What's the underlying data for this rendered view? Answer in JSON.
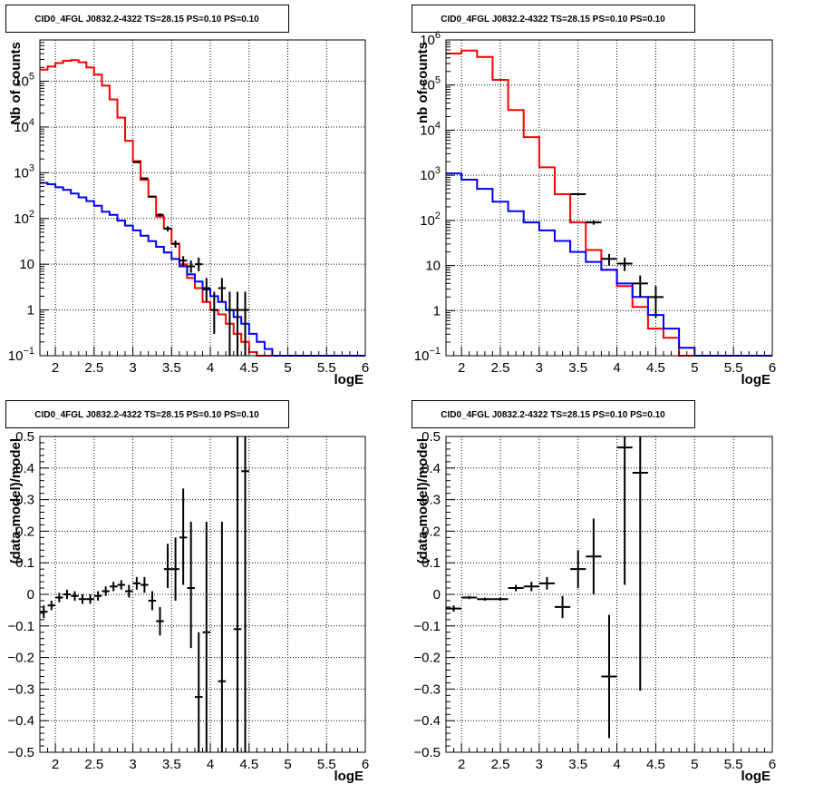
{
  "chart_data": [
    {
      "type": "line",
      "title": "CID0_4FGL J0832.2-4322 TS=28.15 PS=0.10 PS=0.10",
      "xlabel": "logE",
      "ylabel": "Nb of counts",
      "yscale": "log",
      "xlim": [
        1.8,
        6
      ],
      "ylim": [
        0.1,
        800000
      ],
      "grid": true,
      "x_ticks": [
        "2",
        "2.5",
        "3",
        "3.5",
        "4",
        "4.5",
        "5",
        "5.5",
        "6"
      ],
      "y_ticks": [
        {
          "v": 0.1,
          "label": "10",
          "exp": "−1"
        },
        {
          "v": 1,
          "label": "1",
          "exp": ""
        },
        {
          "v": 10,
          "label": "10",
          "exp": ""
        },
        {
          "v": 100,
          "label": "10",
          "exp": "2"
        },
        {
          "v": 1000,
          "label": "10",
          "exp": "3"
        },
        {
          "v": 10000,
          "label": "10",
          "exp": "4"
        },
        {
          "v": 100000,
          "label": "10",
          "exp": "5"
        }
      ],
      "bin_edges": [
        1.8,
        1.9,
        2.0,
        2.1,
        2.2,
        2.3,
        2.4,
        2.5,
        2.6,
        2.7,
        2.8,
        2.9,
        3.0,
        3.1,
        3.2,
        3.3,
        3.4,
        3.5,
        3.6,
        3.7,
        3.8,
        3.9,
        4.0,
        4.1,
        4.2,
        4.3,
        4.4,
        4.5,
        4.6,
        4.7,
        4.8,
        4.9,
        5.0,
        5.1,
        5.2,
        5.3,
        5.4,
        5.5,
        5.6,
        5.7,
        5.8,
        5.9,
        6.0
      ],
      "series": [
        {
          "color": "#ff0000",
          "values": [
            180000,
            210000,
            250000,
            280000,
            290000,
            260000,
            200000,
            140000,
            80000,
            40000,
            16000,
            5000,
            1800,
            700,
            300,
            110,
            60,
            28,
            10,
            5,
            3,
            1.5,
            1,
            0.8,
            0.5,
            0.3,
            0.2,
            0.12,
            0.1,
            0.1,
            0.1,
            0.1,
            0.1,
            0.1,
            0.1,
            0.1,
            0.1,
            0.1,
            0.1,
            0.1,
            0.1,
            0.1
          ]
        },
        {
          "color": "#0000ff",
          "values": [
            600,
            560,
            480,
            420,
            350,
            290,
            240,
            190,
            140,
            120,
            90,
            70,
            55,
            42,
            32,
            24,
            18,
            13,
            9,
            6,
            4.2,
            2.8,
            2,
            1.5,
            1,
            0.7,
            0.5,
            0.3,
            0.2,
            0.14,
            0.1,
            0.1,
            0.1,
            0.1,
            0.1,
            0.1,
            0.1,
            0.1,
            0.1,
            0.1,
            0.1,
            0.1
          ]
        }
      ],
      "data_points": [
        {
          "x": 3.05,
          "y": 1700,
          "xerr": 0.05,
          "ylo": 1650,
          "yhi": 1750
        },
        {
          "x": 3.15,
          "y": 750,
          "xerr": 0.05,
          "ylo": 720,
          "yhi": 780
        },
        {
          "x": 3.25,
          "y": 300,
          "xerr": 0.05,
          "ylo": 285,
          "yhi": 315
        },
        {
          "x": 3.35,
          "y": 120,
          "xerr": 0.05,
          "ylo": 110,
          "yhi": 130
        },
        {
          "x": 3.45,
          "y": 60,
          "xerr": 0.05,
          "ylo": 52,
          "yhi": 68
        },
        {
          "x": 3.55,
          "y": 28,
          "xerr": 0.05,
          "ylo": 23,
          "yhi": 33
        },
        {
          "x": 3.65,
          "y": 12,
          "xerr": 0.05,
          "ylo": 9,
          "yhi": 15
        },
        {
          "x": 3.75,
          "y": 9,
          "xerr": 0.05,
          "ylo": 6.5,
          "yhi": 12
        },
        {
          "x": 3.85,
          "y": 10,
          "xerr": 0.05,
          "ylo": 7,
          "yhi": 14
        },
        {
          "x": 3.95,
          "y": 3,
          "xerr": 0.05,
          "ylo": 1.5,
          "yhi": 5
        },
        {
          "x": 4.05,
          "y": 1,
          "xerr": 0.05,
          "ylo": 0.3,
          "yhi": 2.5
        },
        {
          "x": 4.15,
          "y": 3,
          "xerr": 0.05,
          "ylo": 1.5,
          "yhi": 5
        },
        {
          "x": 4.25,
          "y": 1,
          "xerr": 0.05,
          "ylo": 0.1,
          "yhi": 2.5
        },
        {
          "x": 4.35,
          "y": 1,
          "xerr": 0.05,
          "ylo": 0.1,
          "yhi": 2.5
        },
        {
          "x": 4.45,
          "y": 1,
          "xerr": 0.05,
          "ylo": 0.1,
          "yhi": 2.5
        }
      ]
    },
    {
      "type": "line",
      "title": "CID0_4FGL J0832.2-4322 TS=28.15 PS=0.10 PS=0.10",
      "xlabel": "logE",
      "ylabel": "nb of counts",
      "yscale": "log",
      "xlim": [
        1.8,
        6
      ],
      "ylim": [
        0.1,
        1000000
      ],
      "grid": true,
      "x_ticks": [
        "2",
        "2.5",
        "3",
        "3.5",
        "4",
        "4.5",
        "5",
        "5.5",
        "6"
      ],
      "y_ticks": [
        {
          "v": 0.1,
          "label": "10",
          "exp": "−1"
        },
        {
          "v": 1,
          "label": "1",
          "exp": ""
        },
        {
          "v": 10,
          "label": "10",
          "exp": ""
        },
        {
          "v": 100,
          "label": "10",
          "exp": "2"
        },
        {
          "v": 1000,
          "label": "10",
          "exp": "3"
        },
        {
          "v": 10000,
          "label": "10",
          "exp": "4"
        },
        {
          "v": 100000,
          "label": "10",
          "exp": "5"
        },
        {
          "v": 1000000,
          "label": "10",
          "exp": "6"
        }
      ],
      "bin_edges": [
        1.8,
        2.0,
        2.2,
        2.4,
        2.6,
        2.8,
        3.0,
        3.2,
        3.4,
        3.6,
        3.8,
        4.0,
        4.2,
        4.4,
        4.6,
        4.8,
        5.0,
        5.2,
        5.4,
        5.6,
        5.8,
        6.0
      ],
      "series": [
        {
          "color": "#ff0000",
          "values": [
            500000,
            580000,
            420000,
            130000,
            28000,
            7000,
            1500,
            380,
            90,
            22,
            8,
            3.5,
            1.2,
            0.4,
            0.25,
            0.1,
            0.1,
            0.1,
            0.1,
            0.1,
            0.1
          ]
        },
        {
          "color": "#0000ff",
          "values": [
            1100,
            800,
            500,
            260,
            160,
            90,
            60,
            35,
            20,
            12,
            8,
            4,
            2,
            0.8,
            0.4,
            0.15,
            0.1,
            0.1,
            0.1,
            0.1,
            0.1
          ]
        }
      ],
      "data_points": [
        {
          "x": 3.5,
          "y": 380,
          "xerr": 0.1,
          "ylo": 360,
          "yhi": 400
        },
        {
          "x": 3.7,
          "y": 90,
          "xerr": 0.1,
          "ylo": 80,
          "yhi": 100
        },
        {
          "x": 3.9,
          "y": 14,
          "xerr": 0.1,
          "ylo": 10,
          "yhi": 18
        },
        {
          "x": 4.1,
          "y": 11,
          "xerr": 0.1,
          "ylo": 7.5,
          "yhi": 15
        },
        {
          "x": 4.3,
          "y": 4,
          "xerr": 0.1,
          "ylo": 2,
          "yhi": 6
        },
        {
          "x": 4.5,
          "y": 2,
          "xerr": 0.1,
          "ylo": 0.7,
          "yhi": 3.5
        }
      ]
    },
    {
      "type": "scatter",
      "title": "CID0_4FGL J0832.2-4322 TS=28.15 PS=0.10 PS=0.10",
      "xlabel": "logE",
      "ylabel": "(data-model)/model",
      "yscale": "linear",
      "xlim": [
        1.8,
        6
      ],
      "ylim": [
        -0.5,
        0.5
      ],
      "grid": true,
      "x_ticks": [
        "2",
        "2.5",
        "3",
        "3.5",
        "4",
        "4.5",
        "5",
        "5.5",
        "6"
      ],
      "y_ticks": [
        {
          "v": 0.5,
          "label": "0.5"
        },
        {
          "v": 0.4,
          "label": "0.4"
        },
        {
          "v": 0.3,
          "label": "0.3"
        },
        {
          "v": 0.2,
          "label": "0.2"
        },
        {
          "v": 0.1,
          "label": "0.1"
        },
        {
          "v": 0,
          "label": "0"
        },
        {
          "v": -0.1,
          "label": "−0.1"
        },
        {
          "v": -0.2,
          "label": "−0.2"
        },
        {
          "v": -0.3,
          "label": "−0.3"
        },
        {
          "v": -0.4,
          "label": "−0.4"
        },
        {
          "v": -0.5,
          "label": "−0.5"
        }
      ],
      "data_points": [
        {
          "x": 1.85,
          "y": -0.055,
          "xerr": 0.05,
          "ylo": -0.075,
          "yhi": -0.035
        },
        {
          "x": 1.95,
          "y": -0.035,
          "xerr": 0.05,
          "ylo": -0.05,
          "yhi": -0.02
        },
        {
          "x": 2.05,
          "y": -0.01,
          "xerr": 0.05,
          "ylo": -0.025,
          "yhi": 0.005
        },
        {
          "x": 2.15,
          "y": 0.0,
          "xerr": 0.05,
          "ylo": -0.015,
          "yhi": 0.015
        },
        {
          "x": 2.25,
          "y": -0.005,
          "xerr": 0.05,
          "ylo": -0.02,
          "yhi": 0.01
        },
        {
          "x": 2.35,
          "y": -0.015,
          "xerr": 0.05,
          "ylo": -0.03,
          "yhi": 0.0
        },
        {
          "x": 2.45,
          "y": -0.015,
          "xerr": 0.05,
          "ylo": -0.03,
          "yhi": 0.0
        },
        {
          "x": 2.55,
          "y": -0.005,
          "xerr": 0.05,
          "ylo": -0.02,
          "yhi": 0.01
        },
        {
          "x": 2.65,
          "y": 0.01,
          "xerr": 0.05,
          "ylo": -0.005,
          "yhi": 0.025
        },
        {
          "x": 2.75,
          "y": 0.025,
          "xerr": 0.05,
          "ylo": 0.01,
          "yhi": 0.04
        },
        {
          "x": 2.85,
          "y": 0.03,
          "xerr": 0.05,
          "ylo": 0.015,
          "yhi": 0.045
        },
        {
          "x": 2.95,
          "y": 0.01,
          "xerr": 0.05,
          "ylo": -0.01,
          "yhi": 0.03
        },
        {
          "x": 3.05,
          "y": 0.035,
          "xerr": 0.05,
          "ylo": 0.015,
          "yhi": 0.055
        },
        {
          "x": 3.15,
          "y": 0.03,
          "xerr": 0.05,
          "ylo": 0.005,
          "yhi": 0.055
        },
        {
          "x": 3.25,
          "y": -0.02,
          "xerr": 0.05,
          "ylo": -0.05,
          "yhi": 0.01
        },
        {
          "x": 3.35,
          "y": -0.085,
          "xerr": 0.05,
          "ylo": -0.13,
          "yhi": -0.04
        },
        {
          "x": 3.45,
          "y": 0.08,
          "xerr": 0.05,
          "ylo": 0.02,
          "yhi": 0.16
        },
        {
          "x": 3.55,
          "y": 0.08,
          "xerr": 0.05,
          "ylo": -0.02,
          "yhi": 0.18
        },
        {
          "x": 3.65,
          "y": 0.18,
          "xerr": 0.05,
          "ylo": 0.03,
          "yhi": 0.335
        },
        {
          "x": 3.75,
          "y": 0.02,
          "xerr": 0.05,
          "ylo": -0.17,
          "yhi": 0.23
        },
        {
          "x": 3.85,
          "y": -0.325,
          "xerr": 0.05,
          "ylo": -0.5,
          "yhi": -0.12
        },
        {
          "x": 3.95,
          "y": -0.12,
          "xerr": 0.05,
          "ylo": -0.5,
          "yhi": 0.23
        },
        {
          "x": 4.15,
          "y": -0.275,
          "xerr": 0.05,
          "ylo": -0.5,
          "yhi": 0.23
        },
        {
          "x": 4.35,
          "y": -0.11,
          "xerr": 0.05,
          "ylo": -0.5,
          "yhi": 0.5
        },
        {
          "x": 4.45,
          "y": 0.39,
          "xerr": 0.05,
          "ylo": -0.5,
          "yhi": 0.5
        }
      ]
    },
    {
      "type": "scatter",
      "title": "CID0_4FGL J0832.2-4322 TS=28.15 PS=0.10 PS=0.10",
      "xlabel": "logE",
      "ylabel": "(data-model)/model",
      "yscale": "linear",
      "xlim": [
        1.8,
        6
      ],
      "ylim": [
        -0.5,
        0.5
      ],
      "grid": true,
      "x_ticks": [
        "2",
        "2.5",
        "3",
        "3.5",
        "4",
        "4.5",
        "5",
        "5.5",
        "6"
      ],
      "y_ticks": [
        {
          "v": 0.5,
          "label": "0.5"
        },
        {
          "v": 0.4,
          "label": "0.4"
        },
        {
          "v": 0.3,
          "label": "0.3"
        },
        {
          "v": 0.2,
          "label": "0.2"
        },
        {
          "v": 0.1,
          "label": "0.1"
        },
        {
          "v": 0,
          "label": "0"
        },
        {
          "v": -0.1,
          "label": "−0.1"
        },
        {
          "v": -0.2,
          "label": "−0.2"
        },
        {
          "v": -0.3,
          "label": "−0.3"
        },
        {
          "v": -0.4,
          "label": "−0.4"
        },
        {
          "v": -0.5,
          "label": "−0.5"
        }
      ],
      "data_points": [
        {
          "x": 1.9,
          "y": -0.045,
          "xerr": 0.1,
          "ylo": -0.055,
          "yhi": -0.035
        },
        {
          "x": 2.1,
          "y": -0.01,
          "xerr": 0.1,
          "ylo": -0.015,
          "yhi": -0.005
        },
        {
          "x": 2.3,
          "y": -0.015,
          "xerr": 0.1,
          "ylo": -0.02,
          "yhi": -0.01
        },
        {
          "x": 2.5,
          "y": -0.015,
          "xerr": 0.1,
          "ylo": -0.02,
          "yhi": -0.01
        },
        {
          "x": 2.7,
          "y": 0.02,
          "xerr": 0.1,
          "ylo": 0.01,
          "yhi": 0.03
        },
        {
          "x": 2.9,
          "y": 0.025,
          "xerr": 0.1,
          "ylo": 0.01,
          "yhi": 0.04
        },
        {
          "x": 3.1,
          "y": 0.035,
          "xerr": 0.1,
          "ylo": 0.015,
          "yhi": 0.055
        },
        {
          "x": 3.3,
          "y": -0.04,
          "xerr": 0.1,
          "ylo": -0.075,
          "yhi": -0.005
        },
        {
          "x": 3.5,
          "y": 0.08,
          "xerr": 0.1,
          "ylo": 0.02,
          "yhi": 0.14
        },
        {
          "x": 3.7,
          "y": 0.12,
          "xerr": 0.1,
          "ylo": 0.0,
          "yhi": 0.24
        },
        {
          "x": 3.9,
          "y": -0.26,
          "xerr": 0.1,
          "ylo": -0.455,
          "yhi": -0.065
        },
        {
          "x": 4.1,
          "y": 0.465,
          "xerr": 0.1,
          "ylo": 0.03,
          "yhi": 0.5
        },
        {
          "x": 4.3,
          "y": 0.385,
          "xerr": 0.1,
          "ylo": -0.305,
          "yhi": 0.5
        }
      ]
    }
  ]
}
